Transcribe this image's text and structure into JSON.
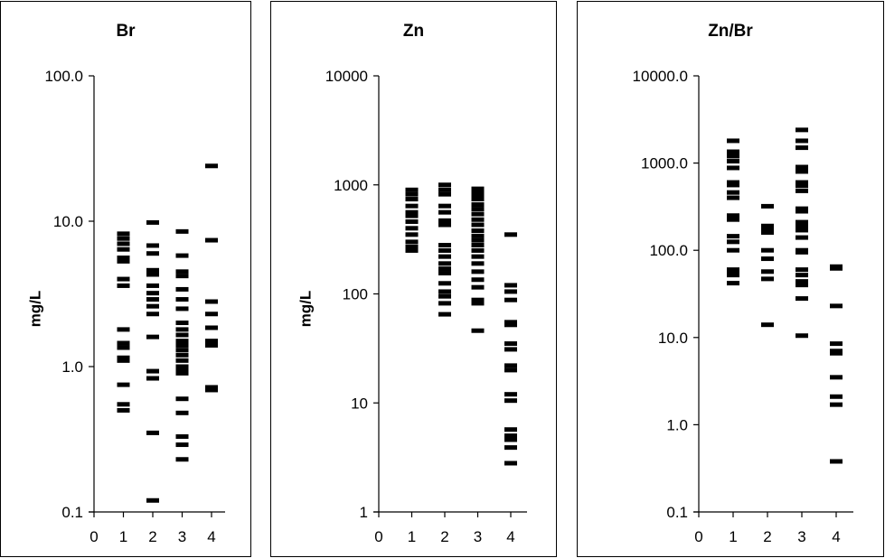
{
  "chart_data": [
    {
      "type": "scatter",
      "title": "Br",
      "xlabel": "",
      "ylabel": "mg/L",
      "yscale": "log",
      "ylim": [
        0.1,
        100.0
      ],
      "xlim": [
        0,
        4
      ],
      "yticks": [
        "0.1",
        "1.0",
        "10.0",
        "100.0"
      ],
      "xticks": [
        "0",
        "1",
        "2",
        "3",
        "4"
      ],
      "grid": false,
      "marker": "horizontal-dash",
      "series": [
        {
          "x": 1,
          "values": [
            8.2,
            7.6,
            7.0,
            6.4,
            5.6,
            5.3,
            4.0,
            3.6,
            1.8,
            1.45,
            1.35,
            1.15,
            1.1,
            0.75,
            0.55,
            0.5
          ]
        },
        {
          "x": 2,
          "values": [
            9.8,
            6.8,
            6.0,
            4.6,
            4.3,
            3.6,
            3.2,
            2.9,
            2.6,
            2.3,
            1.6,
            0.93,
            0.83,
            0.35,
            0.12
          ]
        },
        {
          "x": 3,
          "values": [
            8.5,
            5.8,
            4.5,
            4.2,
            3.4,
            2.9,
            2.5,
            2.0,
            1.8,
            1.65,
            1.5,
            1.4,
            1.3,
            1.2,
            1.1,
            1.0,
            0.97,
            0.93,
            0.9,
            0.6,
            0.48,
            0.33,
            0.29,
            0.23
          ]
        },
        {
          "x": 4,
          "values": [
            24,
            7.4,
            2.8,
            2.3,
            1.85,
            1.5,
            1.4,
            0.72,
            0.69
          ]
        }
      ]
    },
    {
      "type": "scatter",
      "title": "Zn",
      "xlabel": "",
      "ylabel": "mg/L",
      "yscale": "log",
      "ylim": [
        1,
        10000
      ],
      "xlim": [
        0,
        4
      ],
      "yticks": [
        "1",
        "10",
        "100",
        "1000",
        "10000"
      ],
      "xticks": [
        "0",
        "1",
        "2",
        "3",
        "4"
      ],
      "grid": false,
      "marker": "horizontal-dash",
      "series": [
        {
          "x": 1,
          "values": [
            900,
            820,
            740,
            640,
            560,
            520,
            460,
            400,
            350,
            300,
            270,
            250
          ]
        },
        {
          "x": 2,
          "values": [
            1000,
            900,
            820,
            640,
            560,
            470,
            430,
            280,
            250,
            220,
            190,
            170,
            155,
            125,
            105,
            95,
            82,
            65
          ]
        },
        {
          "x": 3,
          "values": [
            920,
            860,
            800,
            740,
            660,
            600,
            540,
            480,
            430,
            380,
            340,
            310,
            280,
            250,
            220,
            190,
            160,
            135,
            115,
            88,
            82,
            46
          ]
        },
        {
          "x": 4,
          "values": [
            350,
            120,
            105,
            88,
            55,
            52,
            35,
            31,
            22,
            20,
            12,
            10.5,
            5.7,
            5.0,
            4.6,
            3.9,
            2.8
          ]
        }
      ]
    },
    {
      "type": "scatter",
      "title": "Zn/Br",
      "xlabel": "",
      "ylabel": "",
      "yscale": "log",
      "ylim": [
        0.1,
        10000.0
      ],
      "xlim": [
        0,
        4
      ],
      "yticks": [
        "0.1",
        "1.0",
        "10.0",
        "100.0",
        "1000.0",
        "10000.0"
      ],
      "xticks": [
        "0",
        "1",
        "2",
        "3",
        "4"
      ],
      "grid": false,
      "marker": "horizontal-dash",
      "series": [
        {
          "x": 1,
          "values": [
            1800,
            1350,
            1200,
            1050,
            880,
            600,
            560,
            460,
            400,
            250,
            225,
            145,
            125,
            100,
            60,
            55,
            52,
            42
          ]
        },
        {
          "x": 2,
          "values": [
            320,
            190,
            170,
            160,
            100,
            80,
            57,
            47,
            14
          ]
        },
        {
          "x": 3,
          "values": [
            2400,
            1800,
            1500,
            900,
            800,
            600,
            550,
            480,
            300,
            280,
            210,
            190,
            170,
            140,
            100,
            95,
            60,
            52,
            44,
            40,
            28,
            10.5
          ]
        },
        {
          "x": 4,
          "values": [
            65,
            62,
            23,
            8.5,
            7.0,
            6.6,
            3.5,
            2.1,
            1.7,
            0.38
          ]
        }
      ]
    }
  ],
  "panels": [
    {
      "title": "Br",
      "ylabel": "mg/L"
    },
    {
      "title": "Zn",
      "ylabel": "mg/L"
    },
    {
      "title": "Zn/Br",
      "ylabel": ""
    }
  ]
}
